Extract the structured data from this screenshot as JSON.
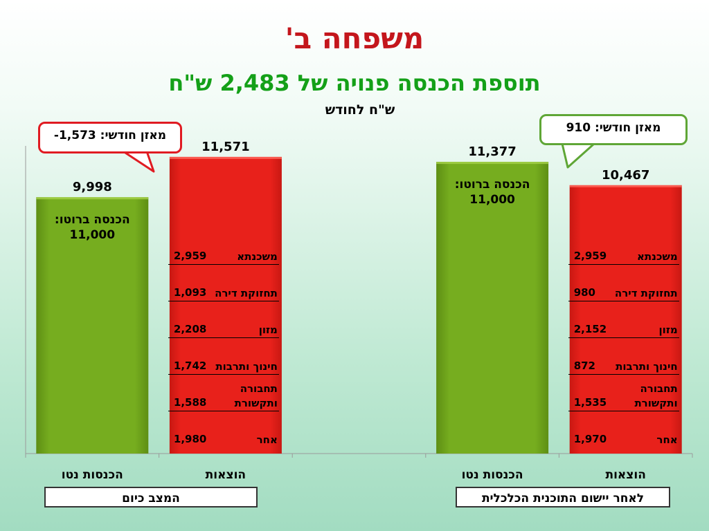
{
  "title": "משפחה ב'",
  "subtitle": "תוספת הכנסה פנויה של 2,483 ש\"ח",
  "units": "ש\"ח לחודש",
  "callouts": {
    "left": "מאזן חודשי: 1,573-",
    "right": "מאזן חודשי: 910"
  },
  "colors": {
    "income": "#76ad1f",
    "expense": "#e8211b",
    "callout_left": "#e01b22",
    "callout_right": "#5fa636"
  },
  "groups": [
    {
      "label": "המצב כיום"
    },
    {
      "label": "לאחר יישום התוכנית הכלכלית"
    }
  ],
  "chart_data": {
    "type": "bar",
    "ylim": [
      0,
      12000
    ],
    "categories": [
      "הכנסות נטו",
      "הוצאות",
      "",
      "הכנסות נטו",
      "הוצאות"
    ],
    "bars": [
      {
        "category": "הכנסות נטו",
        "kind": "income",
        "total_label": "9,998",
        "total": 9998,
        "inner_label": "הכנסה ברוטו:",
        "inner_value": "11,000",
        "segments": []
      },
      {
        "category": "הוצאות",
        "kind": "expense",
        "total_label": "11,571",
        "total": 11571,
        "segments": [
          {
            "label": "משכנתא",
            "value_label": "2,959",
            "value": 2959
          },
          {
            "label": "תחזוקת דירה",
            "value_label": "1,093",
            "value": 1093
          },
          {
            "label": "מזון",
            "value_label": "2,208",
            "value": 2208
          },
          {
            "label": "חינוך ותרבות",
            "value_label": "1,742",
            "value": 1742
          },
          {
            "label": "תחבורה ותקשורת",
            "value_label": "1,588",
            "value": 1588
          },
          {
            "label": "אחר",
            "value_label": "1,980",
            "value": 1980
          }
        ]
      },
      {
        "category": "",
        "kind": "empty",
        "total": 0,
        "segments": []
      },
      {
        "category": "הכנסות נטו",
        "kind": "income",
        "total_label": "11,377",
        "total": 11377,
        "inner_label": "הכנסה ברוטו:",
        "inner_value": "11,000",
        "segments": []
      },
      {
        "category": "הוצאות",
        "kind": "expense",
        "total_label": "10,467",
        "total": 10467,
        "segments": [
          {
            "label": "משכנתא",
            "value_label": "2,959",
            "value": 2959
          },
          {
            "label": "תחזוקת דירה",
            "value_label": "980",
            "value": 980
          },
          {
            "label": "מזון",
            "value_label": "2,152",
            "value": 2152
          },
          {
            "label": "חינוך ותרבות",
            "value_label": "872",
            "value": 872
          },
          {
            "label": "תחבורה ותקשורת",
            "value_label": "1,535",
            "value": 1535
          },
          {
            "label": "אחר",
            "value_label": "1,970",
            "value": 1970
          }
        ]
      }
    ]
  }
}
